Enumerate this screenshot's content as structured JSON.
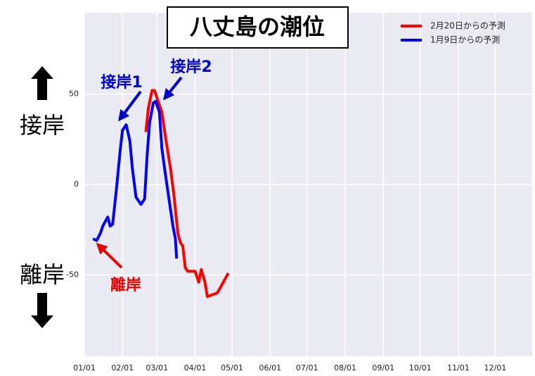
{
  "chart_data": {
    "type": "line",
    "title": "八丈島の潮位",
    "annotations": [
      "接岸1",
      "接岸2",
      "離岸",
      "接岸",
      "離岸"
    ],
    "xlim": [
      "01/01",
      "12/31"
    ],
    "xticks": [
      "01/01",
      "02/01",
      "03/01",
      "04/01",
      "05/01",
      "06/01",
      "07/01",
      "08/01",
      "09/01",
      "10/01",
      "11/01",
      "12/01"
    ],
    "ylim": [
      -95,
      95
    ],
    "yticks": [
      -50,
      0,
      50
    ],
    "grid": true,
    "legend": "upper right",
    "series": [
      {
        "name": "2月20日からの予測",
        "color": "#ff0000",
        "x": [
          "02/20",
          "02/22",
          "02/25",
          "02/27",
          "03/02",
          "03/05",
          "03/08",
          "03/12",
          "03/15",
          "03/18",
          "03/20",
          "03/22",
          "03/24",
          "03/26",
          "03/29",
          "04/01",
          "04/04",
          "04/06",
          "04/09",
          "04/11",
          "04/15",
          "04/19",
          "04/24",
          "04/28"
        ],
        "values": [
          29,
          42,
          52,
          52,
          46,
          40,
          26,
          9,
          -7,
          -27,
          -32,
          -34,
          -46,
          -48,
          -48,
          -48,
          -54,
          -47,
          -54,
          -62,
          -61,
          -60,
          -54,
          -49
        ]
      },
      {
        "name": "1月9日からの予測",
        "color": "#0000ff",
        "x": [
          "01/08",
          "01/11",
          "01/14",
          "01/16",
          "01/20",
          "01/22",
          "01/24",
          "01/27",
          "01/30",
          "02/01",
          "02/04",
          "02/07",
          "02/09",
          "02/12",
          "02/14",
          "02/16",
          "02/19",
          "02/21",
          "02/23",
          "02/26",
          "02/28",
          "03/03",
          "03/05",
          "03/08",
          "03/11",
          "03/14",
          "03/16",
          "03/17"
        ],
        "values": [
          -30,
          -31,
          -27,
          -23,
          -18,
          -23,
          -22,
          -3,
          18,
          30,
          33,
          24,
          9,
          -7,
          -9,
          -11,
          -8,
          16,
          34,
          45,
          46,
          40,
          20,
          5,
          -9,
          -23,
          -30,
          -41
        ]
      }
    ]
  }
}
